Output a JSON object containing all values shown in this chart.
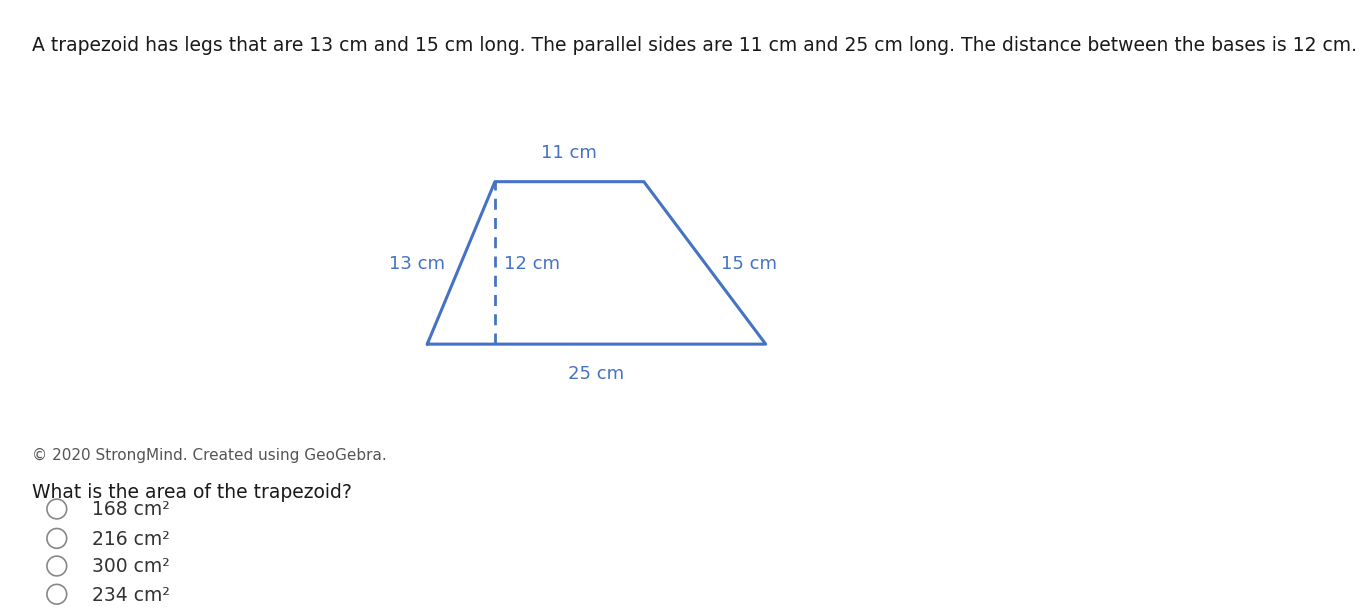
{
  "header_text": "A trapezoid has legs that are 13 cm and 15 cm long. The parallel sides are 11 cm and 25 cm long. The distance between the bases is 12 cm.",
  "trapezoid_color": "#4472C4",
  "trapezoid_linewidth": 2.2,
  "dashed_color": "#4472C4",
  "label_color": "#4472C4",
  "label_fontsize": 13,
  "top_label": "11 cm",
  "bottom_label": "25 cm",
  "left_label": "13 cm",
  "right_label": "15 cm",
  "height_label": "12 cm",
  "copyright_text": "© 2020 StrongMind. Created using GeoGebra.",
  "question_text": "What is the area of the trapezoid?",
  "choices": [
    "168 cm²",
    "216 cm²",
    "300 cm²",
    "234 cm²"
  ],
  "background_color": "#ffffff",
  "header_fontsize": 13.5,
  "question_fontsize": 13.5,
  "choice_fontsize": 13.5,
  "copyright_fontsize": 11
}
